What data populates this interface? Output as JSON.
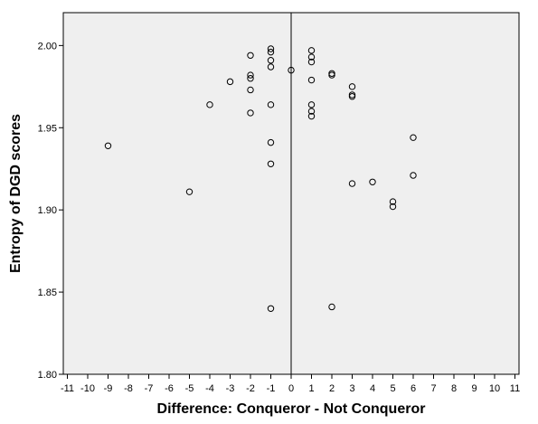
{
  "chart_data": {
    "type": "scatter",
    "xlabel": "Difference: Conqueror - Not Conqueror",
    "ylabel": "Entropy of DGD scores",
    "xlim": [
      -11,
      11
    ],
    "ylim": [
      1.8,
      2.02
    ],
    "x_ticks": [
      "-11",
      "-10",
      "-9",
      "-8",
      "-7",
      "-6",
      "-5",
      "-4",
      "-3",
      "-2",
      "-1",
      "0",
      "1",
      "2",
      "3",
      "4",
      "5",
      "6",
      "7",
      "8",
      "9",
      "10",
      "11"
    ],
    "y_ticks": [
      "1.80",
      "1.85",
      "1.90",
      "1.95",
      "2.00"
    ],
    "reference_line_x": 0,
    "plot_background": "#efefef",
    "marker_style": "open-circle",
    "points": [
      {
        "x": -9,
        "y": 1.939
      },
      {
        "x": -5,
        "y": 1.911
      },
      {
        "x": -4,
        "y": 1.964
      },
      {
        "x": -3,
        "y": 1.978
      },
      {
        "x": -2,
        "y": 1.994
      },
      {
        "x": -2,
        "y": 1.982
      },
      {
        "x": -2,
        "y": 1.98
      },
      {
        "x": -2,
        "y": 1.973
      },
      {
        "x": -2,
        "y": 1.959
      },
      {
        "x": -1,
        "y": 1.998
      },
      {
        "x": -1,
        "y": 1.996
      },
      {
        "x": -1,
        "y": 1.991
      },
      {
        "x": -1,
        "y": 1.987
      },
      {
        "x": -1,
        "y": 1.964
      },
      {
        "x": -1,
        "y": 1.941
      },
      {
        "x": -1,
        "y": 1.928
      },
      {
        "x": -1,
        "y": 1.84
      },
      {
        "x": 0,
        "y": 1.985
      },
      {
        "x": 1,
        "y": 1.997
      },
      {
        "x": 1,
        "y": 1.993
      },
      {
        "x": 1,
        "y": 1.99
      },
      {
        "x": 1,
        "y": 1.979
      },
      {
        "x": 1,
        "y": 1.964
      },
      {
        "x": 1,
        "y": 1.96
      },
      {
        "x": 1,
        "y": 1.957
      },
      {
        "x": 2,
        "y": 1.983
      },
      {
        "x": 2,
        "y": 1.982
      },
      {
        "x": 2,
        "y": 1.841
      },
      {
        "x": 3,
        "y": 1.975
      },
      {
        "x": 3,
        "y": 1.97
      },
      {
        "x": 3,
        "y": 1.969
      },
      {
        "x": 3,
        "y": 1.916
      },
      {
        "x": 4,
        "y": 1.917
      },
      {
        "x": 5,
        "y": 1.905
      },
      {
        "x": 5,
        "y": 1.902
      },
      {
        "x": 6,
        "y": 1.944
      },
      {
        "x": 6,
        "y": 1.921
      }
    ]
  }
}
